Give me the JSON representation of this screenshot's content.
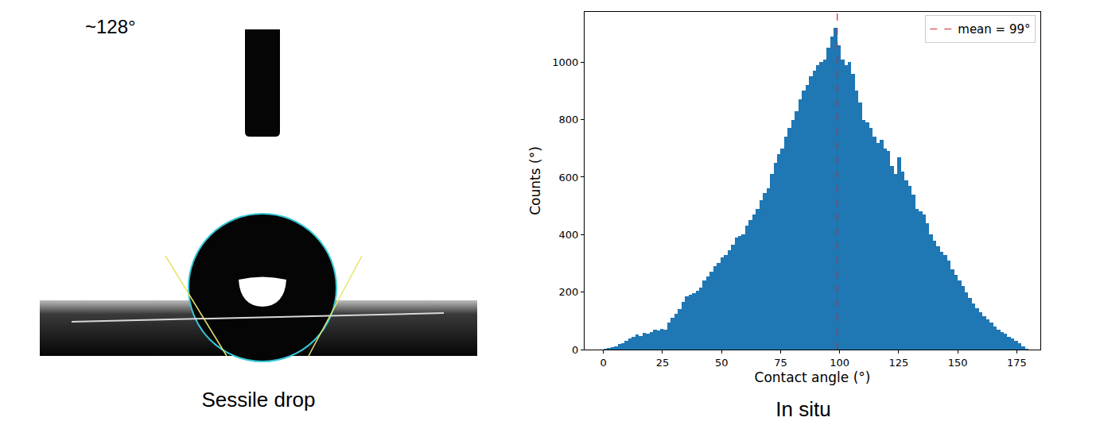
{
  "image_panel": {
    "annotation": "~128°",
    "caption": "Sessile drop"
  },
  "chart_data": {
    "type": "histogram",
    "title": "In situ",
    "x_label": "Contact angle (°)",
    "y_label": "Counts (°)",
    "bins": [
      0,
      1.5,
      3,
      4.5,
      6,
      7.5,
      9,
      10.5,
      12,
      13.5,
      15,
      16.5,
      18,
      19.5,
      21,
      22.5,
      24,
      25.5,
      27,
      28.5,
      30,
      31.5,
      33,
      34.5,
      36,
      37.5,
      39,
      40.5,
      42,
      43.5,
      45,
      46.5,
      48,
      49.5,
      51,
      52.5,
      54,
      55.5,
      57,
      58.5,
      60,
      61.5,
      63,
      64.5,
      66,
      67.5,
      69,
      70.5,
      72,
      73.5,
      75,
      76.5,
      78,
      79.5,
      81,
      82.5,
      84,
      85.5,
      87,
      88.5,
      90,
      91.5,
      93,
      94.5,
      96,
      97.5,
      99,
      100.5,
      102,
      103.5,
      105,
      106.5,
      108,
      109.5,
      111,
      112.5,
      114,
      115.5,
      117,
      118.5,
      120,
      121.5,
      123,
      124.5,
      126,
      127.5,
      129,
      130.5,
      132,
      133.5,
      135,
      136.5,
      138,
      139.5,
      141,
      142.5,
      144,
      145.5,
      147,
      148.5,
      150,
      151.5,
      153,
      154.5,
      156,
      157.5,
      159,
      160.5,
      162,
      163.5,
      165,
      166.5,
      168,
      169.5,
      171,
      172.5,
      174,
      175.5,
      177,
      178.5,
      180
    ],
    "values": [
      2,
      5,
      8,
      12,
      18,
      22,
      30,
      38,
      45,
      52,
      48,
      58,
      55,
      62,
      68,
      65,
      72,
      70,
      95,
      110,
      125,
      140,
      165,
      185,
      190,
      195,
      205,
      215,
      240,
      255,
      270,
      290,
      300,
      320,
      330,
      345,
      365,
      390,
      395,
      400,
      430,
      450,
      470,
      490,
      520,
      545,
      560,
      610,
      650,
      680,
      700,
      740,
      770,
      800,
      830,
      870,
      900,
      920,
      950,
      970,
      990,
      1000,
      1010,
      1050,
      1090,
      1120,
      1060,
      1010,
      990,
      1000,
      960,
      900,
      860,
      800,
      790,
      770,
      740,
      720,
      730,
      700,
      690,
      640,
      610,
      670,
      620,
      590,
      570,
      540,
      490,
      480,
      470,
      440,
      400,
      380,
      360,
      340,
      330,
      310,
      280,
      260,
      240,
      220,
      200,
      180,
      160,
      145,
      130,
      115,
      105,
      95,
      80,
      70,
      60,
      55,
      45,
      40,
      30,
      22,
      10,
      2
    ],
    "color": "#1f77b4",
    "reference_lines": [
      {
        "name": "mean = 99°",
        "value": 99,
        "color": "#d62728",
        "line_style": "dashed"
      }
    ],
    "xlim": [
      -8,
      185
    ],
    "xticks": [
      0,
      25,
      50,
      75,
      100,
      125,
      150,
      175
    ],
    "ylim": [
      0,
      1175
    ],
    "yticks": [
      0,
      200,
      400,
      600,
      800,
      1000
    ],
    "grid": false,
    "legend": "upper right"
  }
}
